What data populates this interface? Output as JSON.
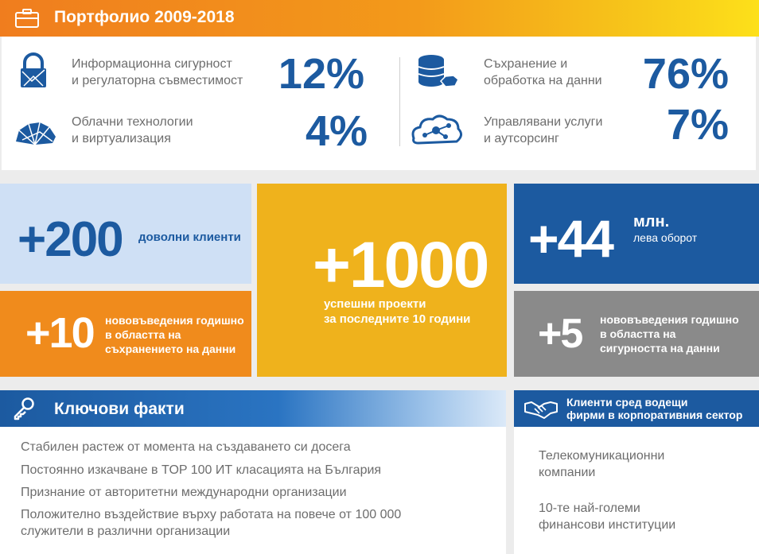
{
  "portfolio": {
    "title": "Портфолио 2009-2018",
    "icon": "briefcase-icon",
    "items": [
      {
        "label_line1": "Информационна сигурност",
        "label_line2": "и регулаторна съвместимост",
        "percent": "12%",
        "icon": "security-lock-icon"
      },
      {
        "label_line1": "Облачни технологии",
        "label_line2": "и виртуализация",
        "percent": "4%",
        "icon": "cloud-icon"
      },
      {
        "label_line1": "Съхранение и",
        "label_line2": "обработка на данни",
        "percent": "76%",
        "icon": "database-icon"
      },
      {
        "label_line1": "Управлявани услуги",
        "label_line2": "и аутсорсинг",
        "percent": "7%",
        "icon": "network-cloud-icon"
      }
    ]
  },
  "stats": {
    "clients": {
      "number": "+200",
      "text": "доволни клиенти"
    },
    "storage_innov": {
      "number": "+10",
      "line1": "нововъведения годишно",
      "line2": "в областта на",
      "line3": "съхранението на данни"
    },
    "projects": {
      "number": "+1000",
      "line1": "успешни проекти",
      "line2": "за последните 10 години"
    },
    "turnover": {
      "number": "+44",
      "unit": "млн.",
      "text": "лева оборот"
    },
    "security_innov": {
      "number": "+5",
      "line1": "нововъведения годишно",
      "line2": "в областта на",
      "line3": "сигурността на данни"
    }
  },
  "key_facts": {
    "title": "Ключови факти",
    "icon": "key-icon",
    "items": [
      "Стабилен растеж от момента на създаването си досега",
      "Постоянно изкачване в TOP 100 ИТ класацията на България",
      "Признание от авторитетни международни организации",
      "Положително въздействие върху работата на повече от 100 000",
      "служители в различни организации"
    ]
  },
  "clients_box": {
    "title_line1": "Клиенти сред водещи",
    "title_line2": "фирми в корпоративния сектор",
    "icon": "handshake-icon",
    "items": [
      {
        "line1": "Телекомуникационни",
        "line2": "компании"
      },
      {
        "line1": "10-те най-големи",
        "line2": "финансови институции"
      }
    ]
  },
  "colors": {
    "brand_blue": "#1c5aa0",
    "orange": "#f08b1c",
    "yellow": "#efb21c",
    "gray": "#8a8a8a",
    "light_blue": "#cfe0f5"
  }
}
